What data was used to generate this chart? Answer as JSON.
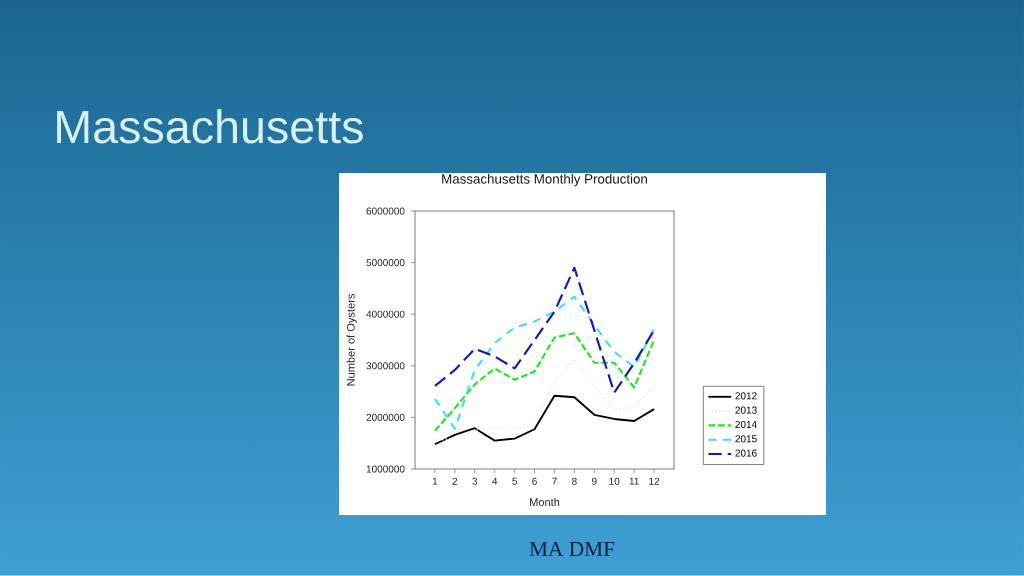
{
  "chart_data": {
    "type": "line",
    "title": "Massachusetts",
    "subtitle": "Massachusetts Monthly Production",
    "xlabel": "Month",
    "ylabel": "Number of Oysters",
    "categories": [
      "1",
      "2",
      "3",
      "4",
      "5",
      "6",
      "7",
      "8",
      "9",
      "10",
      "11",
      "12"
    ],
    "series": [
      {
        "name": "2012",
        "color": "#000000",
        "line_style": "solid",
        "values": [
          1480000,
          1660000,
          1790000,
          1550000,
          1590000,
          1770000,
          2420000,
          2390000,
          2050000,
          1970000,
          1930000,
          2160000
        ]
      },
      {
        "name": "2013",
        "color": "#e8e8e8",
        "line_style": "dotted",
        "values": [
          1550000,
          1600000,
          1750000,
          1800000,
          1780000,
          1850000,
          2700000,
          3120000,
          2600000,
          2150000,
          2200000,
          2600000
        ]
      },
      {
        "name": "2014",
        "color": "#22e622",
        "line_style": "dashed",
        "values": [
          1740000,
          2180000,
          2640000,
          2950000,
          2730000,
          2890000,
          3550000,
          3630000,
          3060000,
          3060000,
          2580000,
          3500000
        ]
      },
      {
        "name": "2015",
        "color": "#3fe0f0",
        "line_style": "dashed",
        "values": [
          2360000,
          1780000,
          2920000,
          3440000,
          3740000,
          3860000,
          4050000,
          4340000,
          3790000,
          3270000,
          2980000,
          3710000
        ]
      },
      {
        "name": "2016",
        "color": "#1414cc",
        "line_style": "dashed",
        "values": [
          2610000,
          2920000,
          3330000,
          3180000,
          2950000,
          3500000,
          4050000,
          4900000,
          3690000,
          2480000,
          3050000,
          3690000
        ]
      }
    ],
    "ylim": [
      1000000,
      6000000
    ],
    "yticks": [
      1000000,
      2000000,
      3000000,
      4000000,
      5000000,
      6000000
    ],
    "legend": "right",
    "annotations": [
      "MA DMF"
    ]
  }
}
